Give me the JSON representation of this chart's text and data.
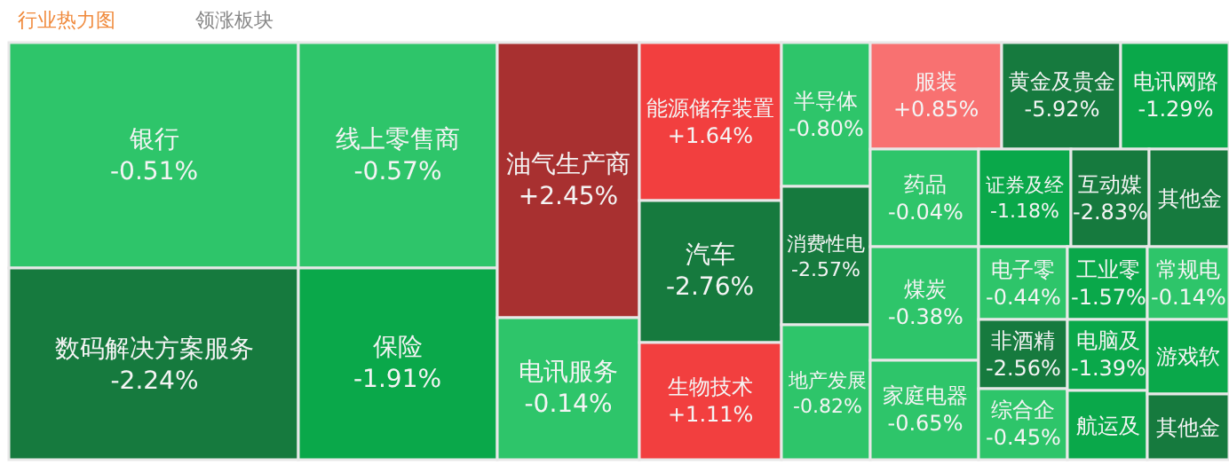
{
  "chart_data": {
    "type": "other",
    "title": "行业热力图",
    "annotations": [
      "领涨板块"
    ],
    "categories": [
      "银行",
      "数码解决方案服务",
      "线上零售商",
      "保险",
      "油气生产商",
      "电讯服务",
      "能源储存装置",
      "汽车",
      "生物技术",
      "半导体",
      "消费性电",
      "地产发展",
      "服装",
      "药品",
      "煤炭",
      "家庭电器",
      "黄金及贵金",
      "电讯网路",
      "证券及经",
      "互动媒",
      "其他金",
      "电子零",
      "工业零",
      "常规电",
      "非酒精",
      "综合企",
      "电脑及",
      "航运及",
      "游戏软",
      "其他金"
    ],
    "values": [
      -0.51,
      -2.24,
      -0.57,
      -1.91,
      2.45,
      -0.14,
      1.64,
      -2.76,
      1.11,
      -0.8,
      -2.57,
      -0.82,
      0.85,
      -0.04,
      -0.38,
      -0.65,
      -5.92,
      -1.29,
      -1.18,
      -2.83,
      null,
      -0.44,
      -1.57,
      -0.14,
      -2.56,
      -0.45,
      -1.39,
      null,
      null,
      null
    ],
    "value_labels": [
      "-0.51%",
      "-2.24%",
      "-0.57%",
      "-1.91%",
      "+2.45%",
      "-0.14%",
      "+1.64%",
      "-2.76%",
      "+1.11%",
      "-0.80%",
      "-2.57%",
      "-0.82%",
      "+0.85%",
      "-0.04%",
      "-0.38%",
      "-0.65%",
      "-5.92%",
      "-1.29%",
      "-1.18%",
      "-2.83%",
      null,
      "-0.44%",
      "-1.57%",
      "-0.14%",
      "-2.56%",
      "-0.45%",
      "-1.39%",
      null,
      null,
      null
    ],
    "colors": [
      null,
      null,
      null,
      null,
      null,
      null,
      null,
      null,
      null,
      null,
      null,
      null,
      null,
      null,
      null,
      null,
      null,
      null,
      null,
      null,
      "#167a3e",
      null,
      null,
      null,
      null,
      null,
      null,
      "#0aa84a",
      "#0aa84a",
      "#167a3e"
    ]
  }
}
